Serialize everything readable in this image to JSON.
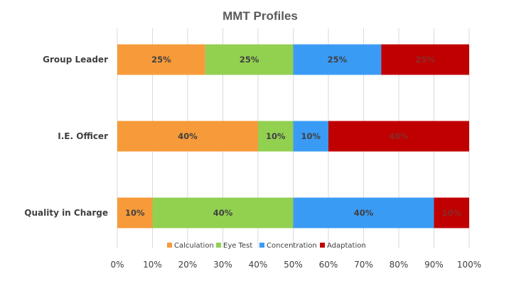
{
  "chart_data": {
    "type": "bar",
    "orientation": "horizontal",
    "stacked": true,
    "title": "MMT Profiles",
    "categories": [
      "Group Leader",
      "I.E. Officer",
      "Quality in Charge"
    ],
    "series": [
      {
        "name": "Calculation",
        "values": [
          25,
          40,
          10
        ],
        "labels": [
          "25%",
          "40%",
          "10%"
        ],
        "color": "#F79A3A"
      },
      {
        "name": "Eye Test",
        "values": [
          25,
          10,
          40
        ],
        "labels": [
          "25%",
          "10%",
          "40%"
        ],
        "color": "#92D050"
      },
      {
        "name": "Concentration",
        "values": [
          25,
          10,
          40
        ],
        "labels": [
          "25%",
          "10%",
          "40%"
        ],
        "color": "#3A9BF5"
      },
      {
        "name": "Adaptation",
        "values": [
          25,
          40,
          10
        ],
        "labels": [
          "25%",
          "40%",
          "10%"
        ],
        "color": "#C00000"
      }
    ],
    "xlim": [
      0,
      100
    ],
    "xticks": [
      "0%",
      "10%",
      "20%",
      "30%",
      "40%",
      "50%",
      "60%",
      "70%",
      "80%",
      "90%",
      "100%"
    ],
    "grid": true,
    "legend": "bottom"
  }
}
